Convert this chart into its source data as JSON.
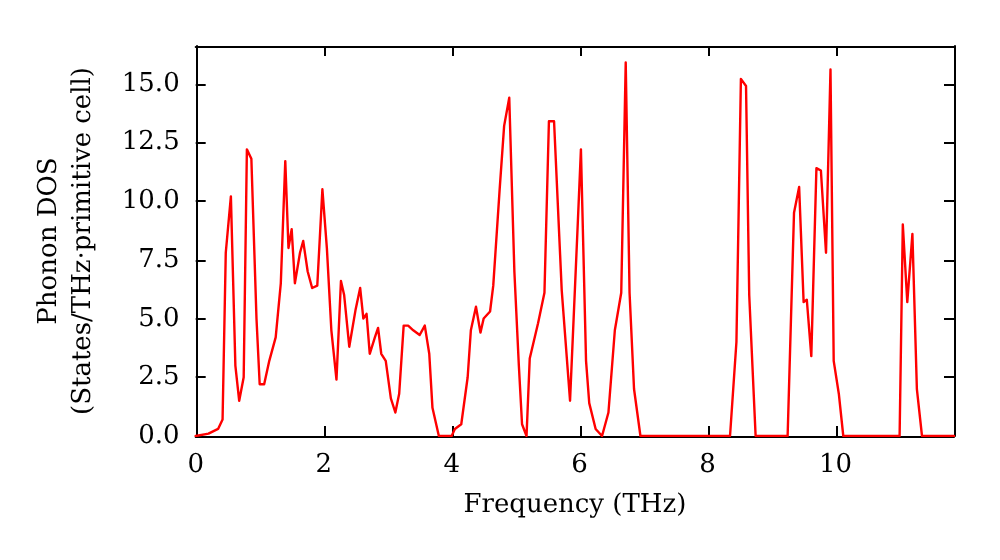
{
  "chart_data": {
    "type": "line",
    "xlabel": "Frequency (THz)",
    "ylabel": "Phonon DOS\n(States/THz·primitive cell)",
    "xlim": [
      0,
      11.85
    ],
    "ylim": [
      0,
      16.6
    ],
    "xticks": [
      0,
      2,
      4,
      6,
      8,
      10
    ],
    "yticks": [
      {
        "value": 0,
        "label": "0.0"
      },
      {
        "value": 2.5,
        "label": "2.5"
      },
      {
        "value": 5,
        "label": "5.0"
      },
      {
        "value": 7.5,
        "label": "7.5"
      },
      {
        "value": 10,
        "label": "10.0"
      },
      {
        "value": 12.5,
        "label": "12.5"
      },
      {
        "value": 15,
        "label": "15.0"
      }
    ],
    "grid": false,
    "marker": "none",
    "line_style": "solid",
    "series": [
      {
        "color": "#ff0000",
        "x": [
          0,
          0.2,
          0.35,
          0.42,
          0.47,
          0.55,
          0.62,
          0.68,
          0.75,
          0.8,
          0.87,
          0.95,
          1.0,
          1.07,
          1.15,
          1.25,
          1.33,
          1.4,
          1.45,
          1.5,
          1.55,
          1.63,
          1.68,
          1.75,
          1.82,
          1.9,
          1.98,
          2.05,
          2.12,
          2.2,
          2.27,
          2.32,
          2.4,
          2.5,
          2.57,
          2.62,
          2.67,
          2.72,
          2.8,
          2.85,
          2.9,
          2.97,
          3.05,
          3.12,
          3.18,
          3.25,
          3.32,
          3.4,
          3.5,
          3.58,
          3.65,
          3.7,
          3.8,
          4.0,
          4.05,
          4.15,
          4.25,
          4.3,
          4.38,
          4.45,
          4.5,
          4.6,
          4.65,
          4.75,
          4.82,
          4.9,
          4.98,
          5.05,
          5.1,
          5.17,
          5.22,
          5.35,
          5.45,
          5.52,
          5.6,
          5.72,
          5.85,
          5.97,
          6.02,
          6.1,
          6.15,
          6.25,
          6.35,
          6.45,
          6.55,
          6.65,
          6.72,
          6.78,
          6.85,
          6.95,
          8.35,
          8.45,
          8.52,
          8.6,
          8.65,
          8.75,
          9.25,
          9.35,
          9.43,
          9.5,
          9.55,
          9.62,
          9.7,
          9.77,
          9.85,
          9.92,
          9.97,
          10.05,
          10.12,
          11.0,
          11.05,
          11.12,
          11.2,
          11.27,
          11.35,
          11.85
        ],
        "values": [
          0,
          0.1,
          0.3,
          0.7,
          7.8,
          10.2,
          3,
          1.5,
          2.5,
          12.2,
          11.8,
          5,
          2.2,
          2.2,
          3.2,
          4.2,
          6.5,
          11.7,
          8,
          8.8,
          6.5,
          7.8,
          8.3,
          7,
          6.3,
          6.4,
          10.5,
          8,
          4.5,
          2.4,
          6.6,
          6,
          3.8,
          5.4,
          6.3,
          5,
          5.2,
          3.5,
          4.2,
          4.6,
          3.5,
          3.2,
          1.6,
          1.0,
          1.8,
          4.7,
          4.7,
          4.5,
          4.3,
          4.7,
          3.5,
          1.2,
          0,
          0,
          0.3,
          0.5,
          2.5,
          4.5,
          5.5,
          4.4,
          5,
          5.3,
          6.4,
          10.5,
          13.2,
          14.4,
          7,
          3,
          0.5,
          0,
          3.3,
          4.8,
          6.1,
          13.4,
          13.4,
          6.2,
          1.5,
          9,
          12.2,
          3.2,
          1.4,
          0.3,
          0,
          1,
          4.5,
          6.1,
          15.9,
          6.1,
          2,
          0,
          0,
          4,
          15.2,
          14.9,
          6,
          0,
          0,
          9.5,
          10.6,
          5.7,
          5.8,
          3.4,
          11.4,
          11.3,
          7.8,
          15.6,
          3.2,
          1.8,
          0,
          0,
          9,
          5.7,
          8.6,
          2,
          0,
          0
        ]
      }
    ]
  }
}
